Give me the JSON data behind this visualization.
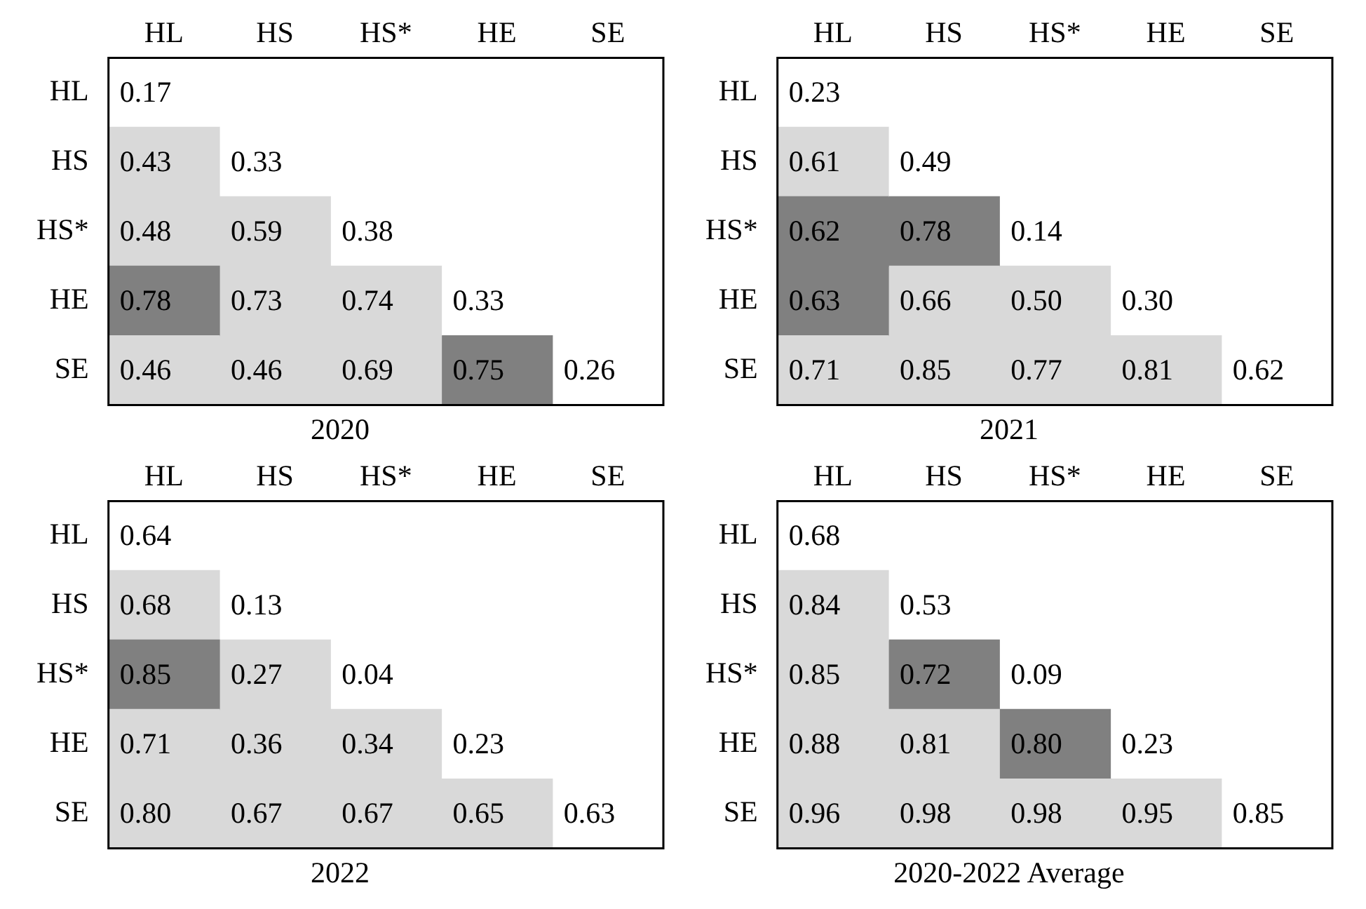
{
  "chart_data": [
    {
      "type": "heatmap",
      "data_labels": true,
      "title": "2020",
      "categories": [
        "HL",
        "HS",
        "HS*",
        "HE",
        "SE"
      ],
      "y_categories": [
        "HL",
        "HS",
        "HS*",
        "HE",
        "SE"
      ],
      "cells": [
        [
          0.17,
          null,
          null,
          null,
          null
        ],
        [
          0.43,
          0.33,
          null,
          null,
          null
        ],
        [
          0.48,
          0.59,
          0.38,
          null,
          null
        ],
        [
          0.78,
          0.73,
          0.74,
          0.33,
          null
        ],
        [
          0.46,
          0.46,
          0.69,
          0.75,
          0.26
        ]
      ],
      "cell_labels": [
        [
          "0.17",
          null,
          null,
          null,
          null
        ],
        [
          "0.43",
          "0.33",
          null,
          null,
          null
        ],
        [
          "0.48",
          "0.59",
          "0.38",
          null,
          null
        ],
        [
          "0.78",
          "0.73",
          "0.74",
          "0.33",
          null
        ],
        [
          "0.46",
          "0.46",
          "0.69",
          "0.75",
          "0.26"
        ]
      ],
      "colors": [
        [
          "#ffffff",
          null,
          null,
          null,
          null
        ],
        [
          "#d9d9d9",
          "#ffffff",
          null,
          null,
          null
        ],
        [
          "#d9d9d9",
          "#d9d9d9",
          "#ffffff",
          null,
          null
        ],
        [
          "#808080",
          "#d9d9d9",
          "#d9d9d9",
          "#ffffff",
          null
        ],
        [
          "#d9d9d9",
          "#d9d9d9",
          "#d9d9d9",
          "#808080",
          "#ffffff"
        ]
      ]
    },
    {
      "type": "heatmap",
      "data_labels": true,
      "title": "2021",
      "categories": [
        "HL",
        "HS",
        "HS*",
        "HE",
        "SE"
      ],
      "y_categories": [
        "HL",
        "HS",
        "HS*",
        "HE",
        "SE"
      ],
      "cells": [
        [
          0.23,
          null,
          null,
          null,
          null
        ],
        [
          0.61,
          0.49,
          null,
          null,
          null
        ],
        [
          0.62,
          0.78,
          0.14,
          null,
          null
        ],
        [
          0.63,
          0.66,
          0.5,
          0.3,
          null
        ],
        [
          0.71,
          0.85,
          0.77,
          0.81,
          0.62
        ]
      ],
      "cell_labels": [
        [
          "0.23",
          null,
          null,
          null,
          null
        ],
        [
          "0.61",
          "0.49",
          null,
          null,
          null
        ],
        [
          "0.62",
          "0.78",
          "0.14",
          null,
          null
        ],
        [
          "0.63",
          "0.66",
          "0.50",
          "0.30",
          null
        ],
        [
          "0.71",
          "0.85",
          "0.77",
          "0.81",
          "0.62"
        ]
      ],
      "colors": [
        [
          "#ffffff",
          null,
          null,
          null,
          null
        ],
        [
          "#d9d9d9",
          "#ffffff",
          null,
          null,
          null
        ],
        [
          "#808080",
          "#808080",
          "#ffffff",
          null,
          null
        ],
        [
          "#808080",
          "#d9d9d9",
          "#d9d9d9",
          "#ffffff",
          null
        ],
        [
          "#d9d9d9",
          "#d9d9d9",
          "#d9d9d9",
          "#d9d9d9",
          "#ffffff"
        ]
      ]
    },
    {
      "type": "heatmap",
      "data_labels": true,
      "title": "2022",
      "categories": [
        "HL",
        "HS",
        "HS*",
        "HE",
        "SE"
      ],
      "y_categories": [
        "HL",
        "HS",
        "HS*",
        "HE",
        "SE"
      ],
      "cells": [
        [
          0.64,
          null,
          null,
          null,
          null
        ],
        [
          0.68,
          0.13,
          null,
          null,
          null
        ],
        [
          0.85,
          0.27,
          0.04,
          null,
          null
        ],
        [
          0.71,
          0.36,
          0.34,
          0.23,
          null
        ],
        [
          0.8,
          0.67,
          0.67,
          0.65,
          0.63
        ]
      ],
      "cell_labels": [
        [
          "0.64",
          null,
          null,
          null,
          null
        ],
        [
          "0.68",
          "0.13",
          null,
          null,
          null
        ],
        [
          "0.85",
          "0.27",
          "0.04",
          null,
          null
        ],
        [
          "0.71",
          "0.36",
          "0.34",
          "0.23",
          null
        ],
        [
          "0.80",
          "0.67",
          "0.67",
          "0.65",
          "0.63"
        ]
      ],
      "colors": [
        [
          "#ffffff",
          null,
          null,
          null,
          null
        ],
        [
          "#d9d9d9",
          "#ffffff",
          null,
          null,
          null
        ],
        [
          "#808080",
          "#d9d9d9",
          "#ffffff",
          null,
          null
        ],
        [
          "#d9d9d9",
          "#d9d9d9",
          "#d9d9d9",
          "#ffffff",
          null
        ],
        [
          "#d9d9d9",
          "#d9d9d9",
          "#d9d9d9",
          "#d9d9d9",
          "#ffffff"
        ]
      ]
    },
    {
      "type": "heatmap",
      "data_labels": true,
      "title": "2020-2022 Average",
      "categories": [
        "HL",
        "HS",
        "HS*",
        "HE",
        "SE"
      ],
      "y_categories": [
        "HL",
        "HS",
        "HS*",
        "HE",
        "SE"
      ],
      "cells": [
        [
          0.68,
          null,
          null,
          null,
          null
        ],
        [
          0.84,
          0.53,
          null,
          null,
          null
        ],
        [
          0.85,
          0.72,
          0.09,
          null,
          null
        ],
        [
          0.88,
          0.81,
          0.8,
          0.23,
          null
        ],
        [
          0.96,
          0.98,
          0.98,
          0.95,
          0.85
        ]
      ],
      "cell_labels": [
        [
          "0.68",
          null,
          null,
          null,
          null
        ],
        [
          "0.84",
          "0.53",
          null,
          null,
          null
        ],
        [
          "0.85",
          "0.72",
          "0.09",
          null,
          null
        ],
        [
          "0.88",
          "0.81",
          "0.80",
          "0.23",
          null
        ],
        [
          "0.96",
          "0.98",
          "0.98",
          "0.95",
          "0.85"
        ]
      ],
      "colors": [
        [
          "#ffffff",
          null,
          null,
          null,
          null
        ],
        [
          "#d9d9d9",
          "#ffffff",
          null,
          null,
          null
        ],
        [
          "#d9d9d9",
          "#808080",
          "#ffffff",
          null,
          null
        ],
        [
          "#d9d9d9",
          "#d9d9d9",
          "#808080",
          "#ffffff",
          null
        ],
        [
          "#d9d9d9",
          "#d9d9d9",
          "#d9d9d9",
          "#d9d9d9",
          "#ffffff"
        ]
      ]
    }
  ]
}
